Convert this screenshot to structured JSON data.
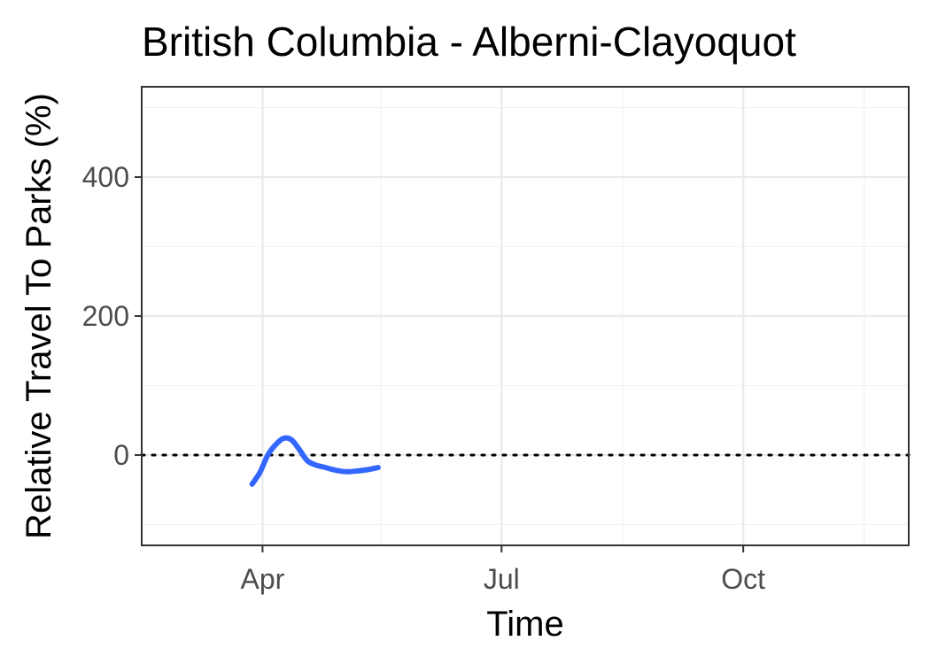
{
  "chart_data": {
    "type": "line",
    "title": "British Columbia - Alberni-Clayoquot",
    "xlabel": "Time",
    "ylabel": "Relative Travel To Parks (%)",
    "x_range": [
      "2020-02-15",
      "2020-12-03"
    ],
    "ylim": [
      -130,
      530
    ],
    "x_ticks": [
      {
        "label": "Apr",
        "date": "2020-04-01"
      },
      {
        "label": "Jul",
        "date": "2020-07-01"
      },
      {
        "label": "Oct",
        "date": "2020-10-01"
      }
    ],
    "x_minor_dates": [
      "2020-02-15",
      "2020-05-16",
      "2020-08-16",
      "2020-11-16"
    ],
    "y_ticks": [
      0,
      200,
      400
    ],
    "y_minor": [
      -100,
      100,
      300,
      500
    ],
    "reference_line": {
      "y": 0,
      "style": "dotted",
      "color": "#000000"
    },
    "grid": true,
    "series": [
      {
        "color": "#3366ff",
        "points": [
          {
            "x": "2020-03-28",
            "y": -42
          },
          {
            "x": "2020-03-31",
            "y": -25
          },
          {
            "x": "2020-04-03",
            "y": 0
          },
          {
            "x": "2020-04-06",
            "y": 15
          },
          {
            "x": "2020-04-09",
            "y": 24
          },
          {
            "x": "2020-04-12",
            "y": 22
          },
          {
            "x": "2020-04-15",
            "y": 8
          },
          {
            "x": "2020-04-18",
            "y": -8
          },
          {
            "x": "2020-04-21",
            "y": -14
          },
          {
            "x": "2020-04-25",
            "y": -18
          },
          {
            "x": "2020-04-29",
            "y": -22
          },
          {
            "x": "2020-05-03",
            "y": -24
          },
          {
            "x": "2020-05-07",
            "y": -23
          },
          {
            "x": "2020-05-11",
            "y": -21
          },
          {
            "x": "2020-05-15",
            "y": -18
          }
        ]
      }
    ]
  }
}
